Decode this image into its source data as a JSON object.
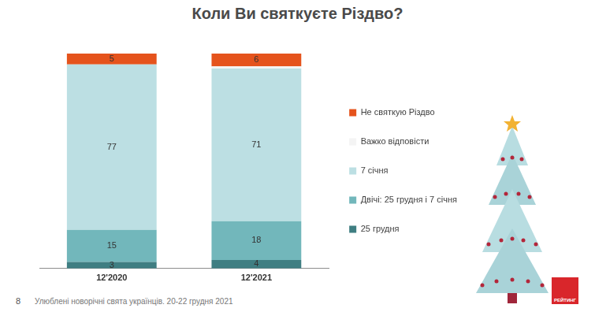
{
  "chart_data": {
    "type": "bar",
    "title": "Коли Ви святкуєте Різдво?",
    "categories": [
      "12'2020",
      "12'2021"
    ],
    "series": [
      {
        "name": "25 грудня",
        "color": "#3f7e82",
        "values": [
          3,
          4
        ]
      },
      {
        "name": "Двічі: 25 грудня і 7 січня",
        "color": "#72b7bb",
        "values": [
          15,
          18
        ]
      },
      {
        "name": "7 січня",
        "color": "#bcdfe3",
        "values": [
          77,
          71
        ]
      },
      {
        "name": "Важко відповісти",
        "color": "#f4f4f4",
        "values": [
          0,
          1
        ],
        "value_labels": [
          null,
          null
        ]
      },
      {
        "name": "Не святкую Різдво",
        "color": "#e5531c",
        "values": [
          5,
          6
        ]
      }
    ],
    "ylim": [
      0,
      100
    ],
    "stacked": true,
    "data_labels": true,
    "grid": false,
    "tick_labels": "x",
    "legend": "right"
  },
  "footer": {
    "page": "8",
    "source": "Улюблені новорічні свята українців. 20-22 грудня 2021"
  },
  "logo": "РЕЙТИНГ"
}
